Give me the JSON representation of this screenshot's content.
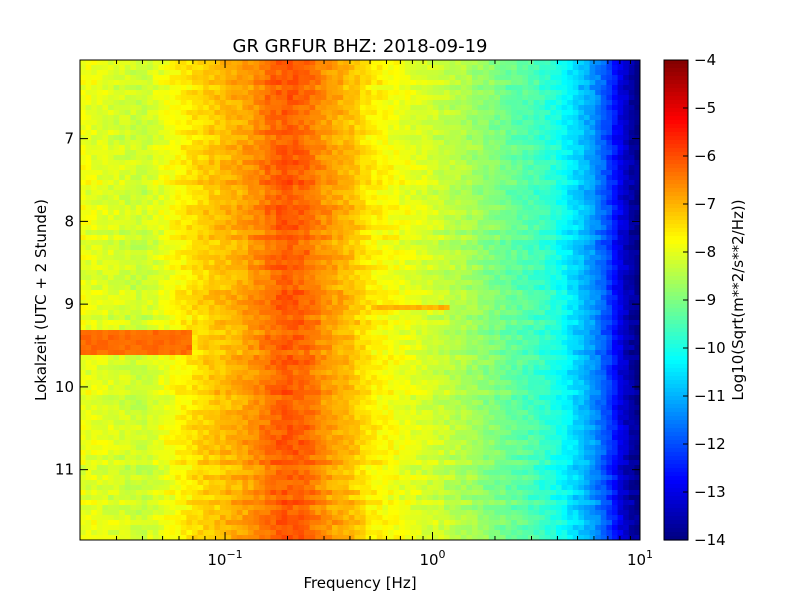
{
  "chart_data": {
    "type": "heatmap",
    "title": "GR GRFUR BHZ: 2018-09-19",
    "xlabel": "Frequency [Hz]",
    "ylabel": "Lokalzeit (UTC + 2 Stunde)",
    "x_scale": "log",
    "xlim": [
      0.02,
      10
    ],
    "ylim": [
      6.05,
      11.85
    ],
    "y_inverted": true,
    "x_ticks": [
      {
        "value": 0.1,
        "base": "10",
        "exp": "−1"
      },
      {
        "value": 1,
        "base": "10",
        "exp": "0"
      },
      {
        "value": 10,
        "base": "10",
        "exp": "1"
      }
    ],
    "y_ticks": [
      {
        "value": 7,
        "label": "7"
      },
      {
        "value": 8,
        "label": "8"
      },
      {
        "value": 9,
        "label": "9"
      },
      {
        "value": 10,
        "label": "10"
      },
      {
        "value": 11,
        "label": "11"
      }
    ],
    "colorbar": {
      "label": "Log10(Sqrt(m**2/s**2/Hz))",
      "colormap": "jet",
      "range": [
        -14,
        -4
      ],
      "ticks": [
        "−4",
        "−5",
        "−6",
        "−7",
        "−8",
        "−9",
        "−10",
        "−11",
        "−12",
        "−13",
        "−14"
      ]
    },
    "spectrum_profile": {
      "frequency_hz": [
        0.02,
        0.04,
        0.06,
        0.08,
        0.1,
        0.13,
        0.16,
        0.2,
        0.25,
        0.3,
        0.4,
        0.5,
        0.7,
        1.0,
        1.5,
        2.0,
        3.0,
        4.0,
        5.0,
        6.0,
        7.0,
        8.0,
        9.0,
        10.0
      ],
      "log10_amplitude": [
        -7.9,
        -8.3,
        -7.7,
        -7.3,
        -7.1,
        -6.8,
        -6.4,
        -6.1,
        -6.3,
        -6.7,
        -7.1,
        -7.6,
        -7.9,
        -8.2,
        -8.6,
        -9.0,
        -9.5,
        -10.0,
        -10.7,
        -11.3,
        -12.1,
        -13.0,
        -13.6,
        -14.0
      ]
    },
    "features": [
      {
        "time_start": 9.3,
        "time_end": 9.6,
        "freq_max_hz": 0.07,
        "log10_amplitude": -6.3
      },
      {
        "time_start": 9.0,
        "time_end": 9.1,
        "freq_min_hz": 0.5,
        "freq_max_hz": 1.2,
        "log10_amplitude": -7.0
      }
    ]
  }
}
